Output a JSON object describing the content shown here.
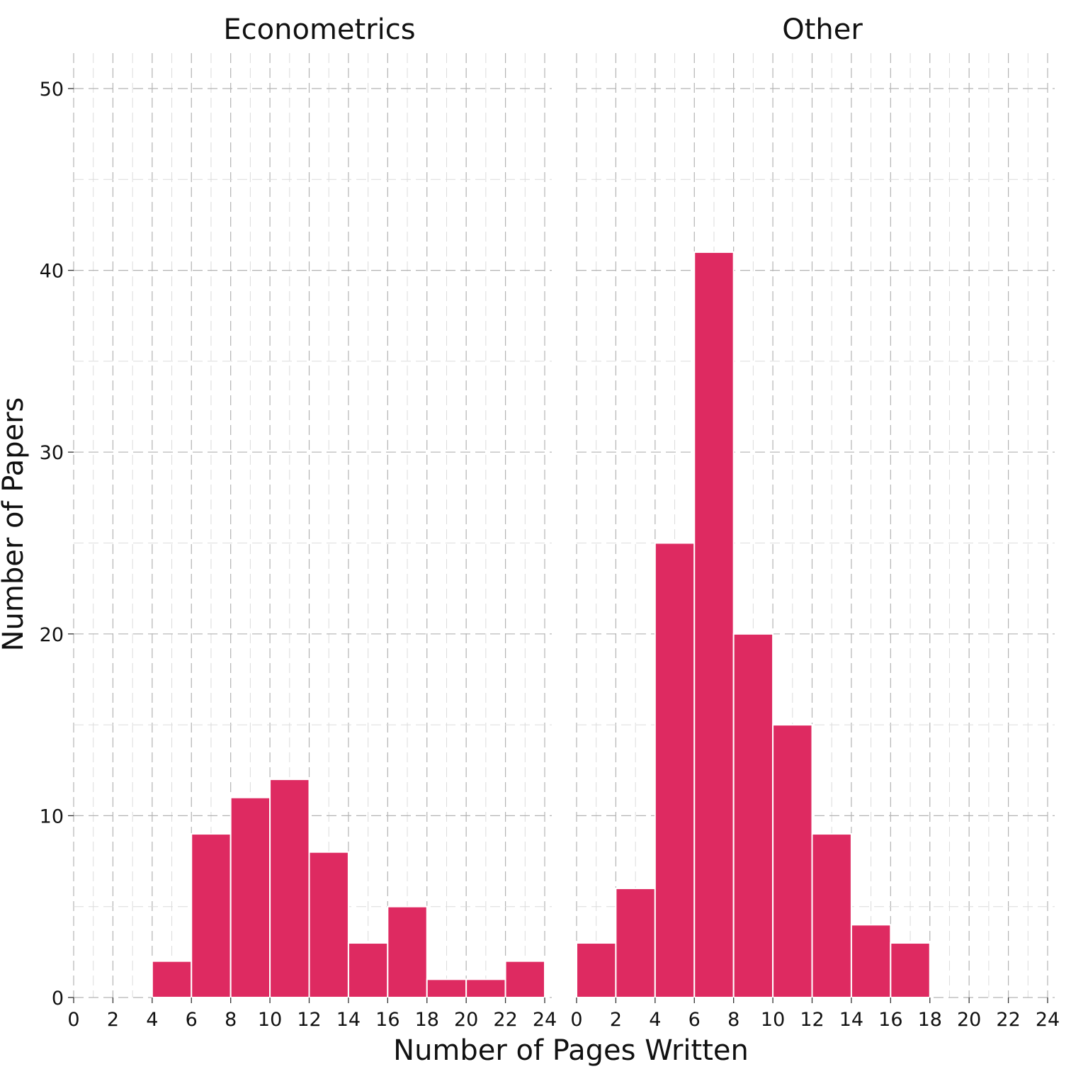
{
  "chart_data": {
    "type": "bar",
    "subtype": "histogram",
    "xlabel": "Number of Pages Written",
    "ylabel": "Number of Papers",
    "bin_width": 2,
    "xlim": [
      0,
      24
    ],
    "ylim": [
      0,
      50
    ],
    "x_ticks": [
      0,
      2,
      4,
      6,
      8,
      10,
      12,
      14,
      16,
      18,
      20,
      22,
      24
    ],
    "y_ticks": [
      0,
      10,
      20,
      30,
      40,
      50
    ],
    "grid": true,
    "grid_style": "dashed",
    "legend": "none",
    "bar_color": "#DE2A61",
    "facets": [
      {
        "title": "Econometrics",
        "bins": [
          {
            "x0": 4,
            "x1": 6,
            "count": 2
          },
          {
            "x0": 6,
            "x1": 8,
            "count": 9
          },
          {
            "x0": 8,
            "x1": 10,
            "count": 11
          },
          {
            "x0": 10,
            "x1": 12,
            "count": 12
          },
          {
            "x0": 12,
            "x1": 14,
            "count": 8
          },
          {
            "x0": 14,
            "x1": 16,
            "count": 3
          },
          {
            "x0": 16,
            "x1": 18,
            "count": 5
          },
          {
            "x0": 18,
            "x1": 20,
            "count": 1
          },
          {
            "x0": 20,
            "x1": 22,
            "count": 1
          },
          {
            "x0": 22,
            "x1": 24,
            "count": 2
          }
        ]
      },
      {
        "title": "Other",
        "bins": [
          {
            "x0": 0,
            "x1": 2,
            "count": 3
          },
          {
            "x0": 2,
            "x1": 4,
            "count": 6
          },
          {
            "x0": 4,
            "x1": 6,
            "count": 25
          },
          {
            "x0": 6,
            "x1": 8,
            "count": 41
          },
          {
            "x0": 8,
            "x1": 10,
            "count": 20
          },
          {
            "x0": 10,
            "x1": 12,
            "count": 15
          },
          {
            "x0": 12,
            "x1": 14,
            "count": 9
          },
          {
            "x0": 14,
            "x1": 16,
            "count": 4
          },
          {
            "x0": 16,
            "x1": 18,
            "count": 3
          }
        ]
      }
    ]
  }
}
